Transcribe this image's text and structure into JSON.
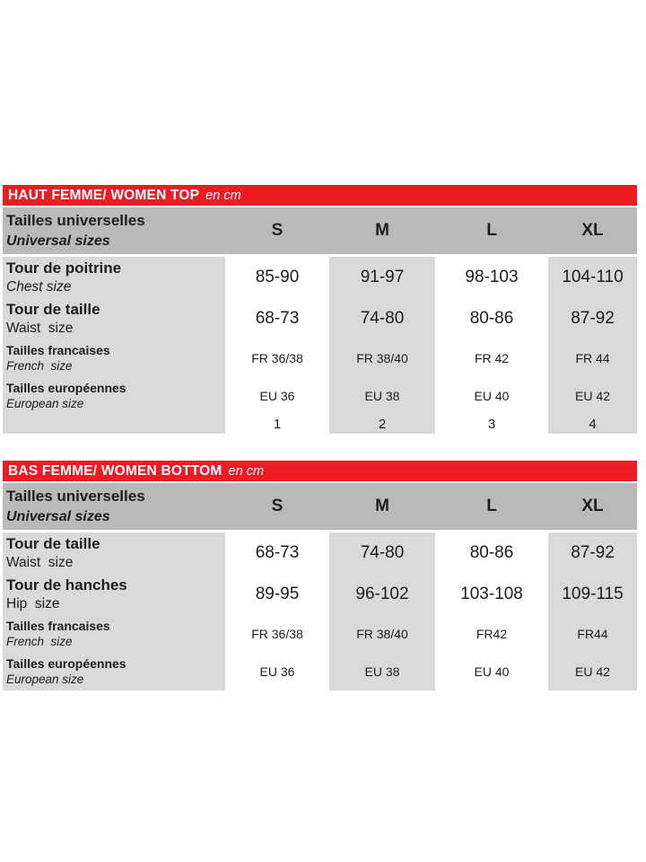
{
  "colors": {
    "title_bar": "#ed1c24",
    "header_row": "#b9b9b9",
    "shaded_column": "#d9d9d9",
    "text": "#1d1d1b"
  },
  "tables": [
    {
      "title": "HAUT FEMME/ WOMEN TOP",
      "title_suffix": "en cm",
      "corner_fr": "Tailles universelles",
      "corner_en": "Universal sizes",
      "columns": [
        "S",
        "M",
        "L",
        "XL"
      ],
      "rows": [
        {
          "label_fr": "Tour de poitrine",
          "label_en": "Chest size",
          "en_italic": true,
          "size": "large",
          "values": [
            "85-90",
            "91-97",
            "98-103",
            "104-110"
          ]
        },
        {
          "label_fr": "Tour de taille",
          "label_en": "Waist  size",
          "en_italic": false,
          "size": "large",
          "values": [
            "68-73",
            "74-80",
            "80-86",
            "87-92"
          ]
        },
        {
          "label_fr": "Tailles francaises",
          "label_en": "French  size",
          "en_italic": true,
          "size": "small",
          "values": [
            "FR 36/38",
            "FR 38/40",
            "FR 42",
            "FR 44"
          ]
        },
        {
          "label_fr": "Tailles européennes",
          "label_en": "European size",
          "en_italic": true,
          "size": "small",
          "values": [
            "EU 36",
            "EU 38",
            "EU 40",
            "EU 42"
          ]
        },
        {
          "label_fr": "",
          "label_en": "",
          "en_italic": false,
          "size": "tiny",
          "values": [
            "1",
            "2",
            "3",
            "4"
          ]
        }
      ]
    },
    {
      "title": "BAS FEMME/ WOMEN BOTTOM",
      "title_suffix": "en cm",
      "corner_fr": "Tailles universelles",
      "corner_en": "Universal sizes",
      "columns": [
        "S",
        "M",
        "L",
        "XL"
      ],
      "rows": [
        {
          "label_fr": "Tour de taille",
          "label_en": "Waist  size",
          "en_italic": false,
          "size": "large",
          "values": [
            "68-73",
            "74-80",
            "80-86",
            "87-92"
          ]
        },
        {
          "label_fr": "Tour de hanches",
          "label_en": "Hip  size",
          "en_italic": false,
          "size": "large",
          "values": [
            "89-95",
            "96-102",
            "103-108",
            "109-115"
          ]
        },
        {
          "label_fr": "Tailles francaises",
          "label_en": "French  size",
          "en_italic": true,
          "size": "small",
          "values": [
            "FR 36/38",
            "FR 38/40",
            "FR42",
            "FR44"
          ]
        },
        {
          "label_fr": "Tailles européennes",
          "label_en": "European size",
          "en_italic": true,
          "size": "small",
          "values": [
            "EU 36",
            "EU 38",
            "EU 40",
            "EU 42"
          ]
        }
      ]
    }
  ]
}
